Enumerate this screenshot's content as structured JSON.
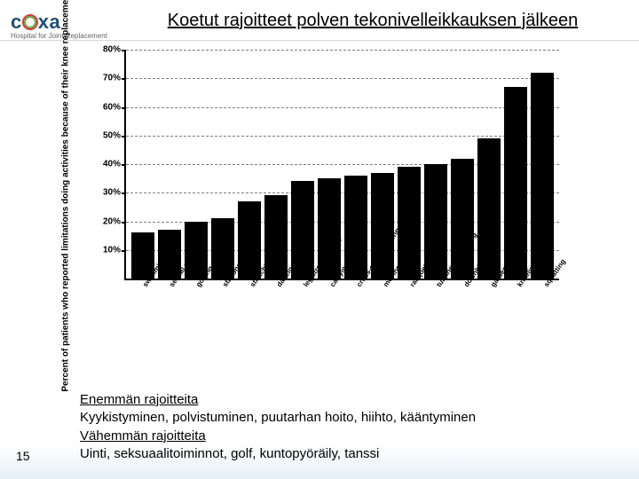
{
  "logo": {
    "brand_prefix": "c",
    "brand_suffix": "xa",
    "tagline": "Hospital for Joint Replacement",
    "circle_color_outer": "#d43b2f",
    "circle_color_inner": "#6aa84f",
    "prefix_color": "#1f4e79",
    "suffix_color": "#1f4e79"
  },
  "title": "Koetut rajoitteet polven tekonivelleikkauksen jälkeen",
  "chart": {
    "type": "bar",
    "ylabel": "Percent of patients who reported limitations doing activities because of their knee replacement",
    "ylim_max": 80,
    "ytick_step": 10,
    "bar_color": "#000000",
    "grid_color": "#000000",
    "background_color": "#ffffff",
    "label_fontsize": 8,
    "categories": [
      "swimming",
      "sexual activities",
      "golfing",
      "stationary biking",
      "stretching",
      "dancing",
      "leg strengthening",
      "carrying weight",
      "cross-country skiing",
      "moving laterally",
      "racquet sports",
      "turning and cutting",
      "downhill skiing",
      "gardening",
      "kneeling",
      "squatting"
    ],
    "values": [
      16,
      17,
      20,
      21,
      27,
      29,
      34,
      35,
      36,
      37,
      39,
      40,
      42,
      49,
      67,
      72
    ]
  },
  "footer": {
    "more_label": "Enemmän rajoitteita",
    "more_text": "Kyykistyminen, polvistuminen, puutarhan hoito, hiihto, kääntyminen",
    "less_label": "Vähemmän rajoitteita",
    "less_text": "Uinti, seksuaalitoiminnot, golf, kuntopyöräily, tanssi"
  },
  "slide_number": "15"
}
